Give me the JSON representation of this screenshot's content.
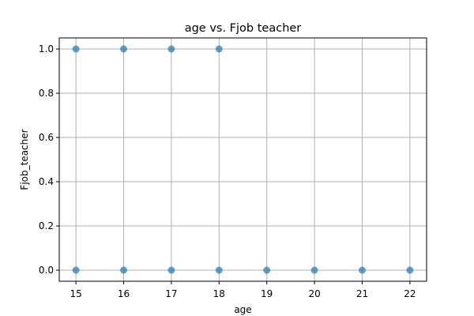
{
  "chart_data": {
    "type": "scatter",
    "title": "age vs. Fjob teacher",
    "xlabel": "age",
    "ylabel": "Fjob_teacher",
    "xlim": [
      14.65,
      22.35
    ],
    "ylim": [
      -0.05,
      1.05
    ],
    "xticks": [
      15,
      16,
      17,
      18,
      19,
      20,
      21,
      22
    ],
    "yticks": [
      0.0,
      0.2,
      0.4,
      0.6,
      0.8,
      1.0
    ],
    "ytick_labels": [
      "0.0",
      "0.2",
      "0.4",
      "0.6",
      "0.8",
      "1.0"
    ],
    "grid": true,
    "marker_color": "#1f77b4",
    "marker_opacity": 0.7,
    "points": [
      {
        "x": 15,
        "y": 1
      },
      {
        "x": 15,
        "y": 0
      },
      {
        "x": 16,
        "y": 1
      },
      {
        "x": 16,
        "y": 0
      },
      {
        "x": 17,
        "y": 1
      },
      {
        "x": 17,
        "y": 0
      },
      {
        "x": 18,
        "y": 1
      },
      {
        "x": 18,
        "y": 0
      },
      {
        "x": 19,
        "y": 0
      },
      {
        "x": 20,
        "y": 0
      },
      {
        "x": 21,
        "y": 0
      },
      {
        "x": 22,
        "y": 0
      }
    ]
  }
}
